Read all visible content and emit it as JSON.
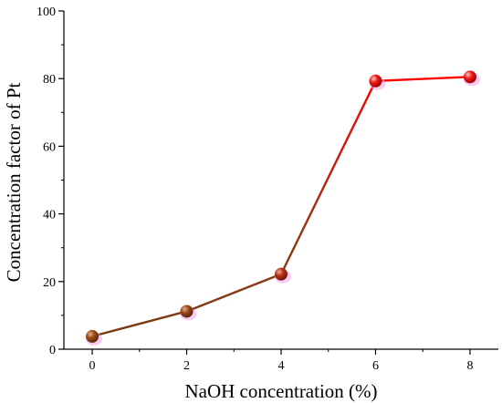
{
  "chart_data": {
    "type": "line",
    "xlabel": "NaOH concentration (%)",
    "ylabel": "Concentration factor of Pt",
    "xlim": [
      -0.6,
      8.6
    ],
    "ylim": [
      0,
      100
    ],
    "x_ticks": [
      "0",
      "2",
      "4",
      "6",
      "8"
    ],
    "y_ticks": [
      "0",
      "20",
      "40",
      "60",
      "80",
      "100"
    ],
    "grid": false,
    "legend": "none",
    "series": [
      {
        "x": [
          0,
          2,
          4,
          6,
          8
        ],
        "values": [
          3.8,
          11.2,
          22.2,
          79.3,
          80.5
        ]
      }
    ],
    "colors": {
      "line_start": "#7a3a12",
      "line_end": "#ff0000",
      "marker_brown": "#8b4010",
      "marker_red": "#ee1111",
      "marker_shadow": "#f0a0e8"
    }
  }
}
